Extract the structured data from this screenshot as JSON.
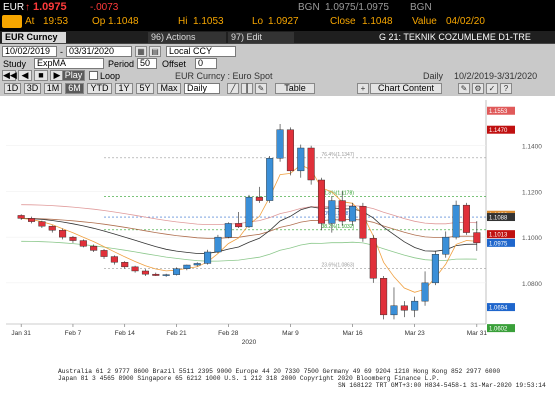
{
  "ticker": {
    "symbol": "EUR",
    "last_arrow": "↑",
    "last": "1.0975",
    "change": "-.0073",
    "source": "BGN",
    "bid_ask": "1.0975/1.0975",
    "source2": "BGN",
    "at_label": "At",
    "at_time": "19:53",
    "op_label": "Op",
    "op_value": "1.1048",
    "hi_label": "Hi",
    "hi_value": "1.1053",
    "lo_label": "Lo",
    "lo_value": "1.0927",
    "close_label": "Close",
    "close_value": "1.1048",
    "value_label": "Value",
    "value_date": "04/02/20"
  },
  "toolbar": {
    "security": "EUR Curncy",
    "actions_label": "96) Actions",
    "edit_label": "97) Edit",
    "title": "G 21: TEKNIK COZUMLEME D1-TRE"
  },
  "controls": {
    "start_date": "10/02/2019",
    "end_date": "03/31/2020",
    "currency": "Local CCY",
    "study_label": "Study",
    "study_value": "ExpMA",
    "period_label": "Period",
    "period_value": "50",
    "offset_label": "Offset",
    "offset_value": "0",
    "play_label": "Play",
    "loop_label": "Loop",
    "chart_name": "EUR Curncy : Euro Spot",
    "frequency": "Daily",
    "date_range": "10/2/2019-3/31/2020",
    "periods": [
      "1D",
      "3D",
      "1M",
      "6M",
      "YTD",
      "1Y",
      "5Y",
      "Max"
    ],
    "selected_period": "6M",
    "daily_select": "Daily",
    "table_label": "Table",
    "chart_content_label": "Chart Content"
  },
  "chart_data": {
    "type": "candlestick",
    "ylim": [
      1.062,
      1.16
    ],
    "x_ticks": [
      "Jan 31",
      "Feb 7",
      "Feb 14",
      "Feb 21",
      "Feb 28",
      "Mar 9",
      "Mar 16",
      "Mar 23",
      "Mar 31"
    ],
    "year_label": "2020",
    "y_ticks": [
      "1.1400",
      "1.1200",
      "1.1000",
      "1.0800"
    ],
    "fib_labels": [
      "76.4%(1.1347)",
      "61.8%(1.1178)",
      "50%(1.1088)",
      "38.2%(1.1032)",
      "23.6%(1.0863)"
    ],
    "fib_values": [
      1.1347,
      1.1178,
      1.1088,
      1.1032,
      1.0863
    ],
    "price_labels": [
      {
        "text": "1.1553",
        "value": 1.1553,
        "color": "#e05a5a"
      },
      {
        "text": "1.1470",
        "value": 1.147,
        "color": "#c01010"
      },
      {
        "text": "1.1098",
        "value": 1.1098,
        "color": "#d78a30"
      },
      {
        "text": "1.1088",
        "value": 1.1088,
        "color": "#333333"
      },
      {
        "text": "1.1013",
        "value": 1.1013,
        "color": "#c01010"
      },
      {
        "text": "1.0975",
        "value": 1.0975,
        "color": "#1f66cc"
      },
      {
        "text": "1.0694",
        "value": 1.0694,
        "color": "#1f66cc"
      },
      {
        "text": "1.0602",
        "value": 1.0602,
        "color": "#3aa03a"
      }
    ],
    "candles": [
      {
        "o": 1.1095,
        "h": 1.11,
        "l": 1.1075,
        "c": 1.1082
      },
      {
        "o": 1.1082,
        "h": 1.109,
        "l": 1.106,
        "c": 1.1068
      },
      {
        "o": 1.1068,
        "h": 1.1072,
        "l": 1.104,
        "c": 1.1048
      },
      {
        "o": 1.1048,
        "h": 1.1052,
        "l": 1.102,
        "c": 1.103
      },
      {
        "o": 1.103,
        "h": 1.1038,
        "l": 1.099,
        "c": 1.1
      },
      {
        "o": 1.1,
        "h": 1.1005,
        "l": 1.0975,
        "c": 1.0985
      },
      {
        "o": 1.0985,
        "h": 1.099,
        "l": 1.0955,
        "c": 1.096
      },
      {
        "o": 1.096,
        "h": 1.0968,
        "l": 1.0935,
        "c": 1.0942
      },
      {
        "o": 1.0942,
        "h": 1.0948,
        "l": 1.0905,
        "c": 1.0915
      },
      {
        "o": 1.0915,
        "h": 1.092,
        "l": 1.088,
        "c": 1.089
      },
      {
        "o": 1.089,
        "h": 1.0895,
        "l": 1.0862,
        "c": 1.087
      },
      {
        "o": 1.087,
        "h": 1.0875,
        "l": 1.0845,
        "c": 1.0852
      },
      {
        "o": 1.0852,
        "h": 1.086,
        "l": 1.083,
        "c": 1.0838
      },
      {
        "o": 1.0838,
        "h": 1.0845,
        "l": 1.083,
        "c": 1.0832
      },
      {
        "o": 1.0832,
        "h": 1.084,
        "l": 1.0826,
        "c": 1.0836
      },
      {
        "o": 1.0836,
        "h": 1.0868,
        "l": 1.0832,
        "c": 1.0862
      },
      {
        "o": 1.0862,
        "h": 1.088,
        "l": 1.0855,
        "c": 1.0878
      },
      {
        "o": 1.0878,
        "h": 1.089,
        "l": 1.0872,
        "c": 1.0885
      },
      {
        "o": 1.0885,
        "h": 1.0945,
        "l": 1.088,
        "c": 1.0935
      },
      {
        "o": 1.0935,
        "h": 1.101,
        "l": 1.093,
        "c": 1.1
      },
      {
        "o": 1.1,
        "h": 1.1065,
        "l": 1.0995,
        "c": 1.106
      },
      {
        "o": 1.106,
        "h": 1.111,
        "l": 1.104,
        "c": 1.1045
      },
      {
        "o": 1.1045,
        "h": 1.1185,
        "l": 1.104,
        "c": 1.1175
      },
      {
        "o": 1.1175,
        "h": 1.122,
        "l": 1.115,
        "c": 1.116
      },
      {
        "o": 1.116,
        "h": 1.1355,
        "l": 1.115,
        "c": 1.1345
      },
      {
        "o": 1.1345,
        "h": 1.1495,
        "l": 1.133,
        "c": 1.147
      },
      {
        "o": 1.147,
        "h": 1.148,
        "l": 1.127,
        "c": 1.129
      },
      {
        "o": 1.129,
        "h": 1.1405,
        "l": 1.126,
        "c": 1.139
      },
      {
        "o": 1.139,
        "h": 1.14,
        "l": 1.123,
        "c": 1.125
      },
      {
        "o": 1.125,
        "h": 1.126,
        "l": 1.103,
        "c": 1.106
      },
      {
        "o": 1.106,
        "h": 1.118,
        "l": 1.102,
        "c": 1.116
      },
      {
        "o": 1.116,
        "h": 1.12,
        "l": 1.105,
        "c": 1.107
      },
      {
        "o": 1.107,
        "h": 1.115,
        "l": 1.105,
        "c": 1.1135
      },
      {
        "o": 1.1135,
        "h": 1.115,
        "l": 1.098,
        "c": 1.0995
      },
      {
        "o": 1.0995,
        "h": 1.101,
        "l": 1.08,
        "c": 1.082
      },
      {
        "o": 1.082,
        "h": 1.083,
        "l": 1.064,
        "c": 1.066
      },
      {
        "o": 1.066,
        "h": 1.078,
        "l": 1.064,
        "c": 1.07
      },
      {
        "o": 1.07,
        "h": 1.072,
        "l": 1.065,
        "c": 1.068
      },
      {
        "o": 1.068,
        "h": 1.074,
        "l": 1.065,
        "c": 1.072
      },
      {
        "o": 1.072,
        "h": 1.085,
        "l": 1.07,
        "c": 1.08
      },
      {
        "o": 1.08,
        "h": 1.094,
        "l": 1.079,
        "c": 1.0925
      },
      {
        "o": 1.0925,
        "h": 1.1025,
        "l": 1.091,
        "c": 1.1
      },
      {
        "o": 1.1,
        "h": 1.116,
        "l": 1.099,
        "c": 1.114
      },
      {
        "o": 1.114,
        "h": 1.115,
        "l": 1.101,
        "c": 1.102
      },
      {
        "o": 1.102,
        "h": 1.107,
        "l": 1.094,
        "c": 1.0975
      }
    ]
  },
  "footer": {
    "line1": "Australia 61 2 9777 8600  Brazil 5511 2395 9000  Europe 44 20 7330 7500  Germany 49 69 9204 1210  Hong Kong 852 2977 6000",
    "line2": "Japan 81 3 4565 8900      Singapore 65 6212 1000      U.S. 1 212 318 2000      Copyright 2020 Bloomberg Finance L.P.",
    "line3": "SN 168122 TRT  GMT+3:00 H834-5458-1 31-Mar-2020 19:53:14"
  }
}
